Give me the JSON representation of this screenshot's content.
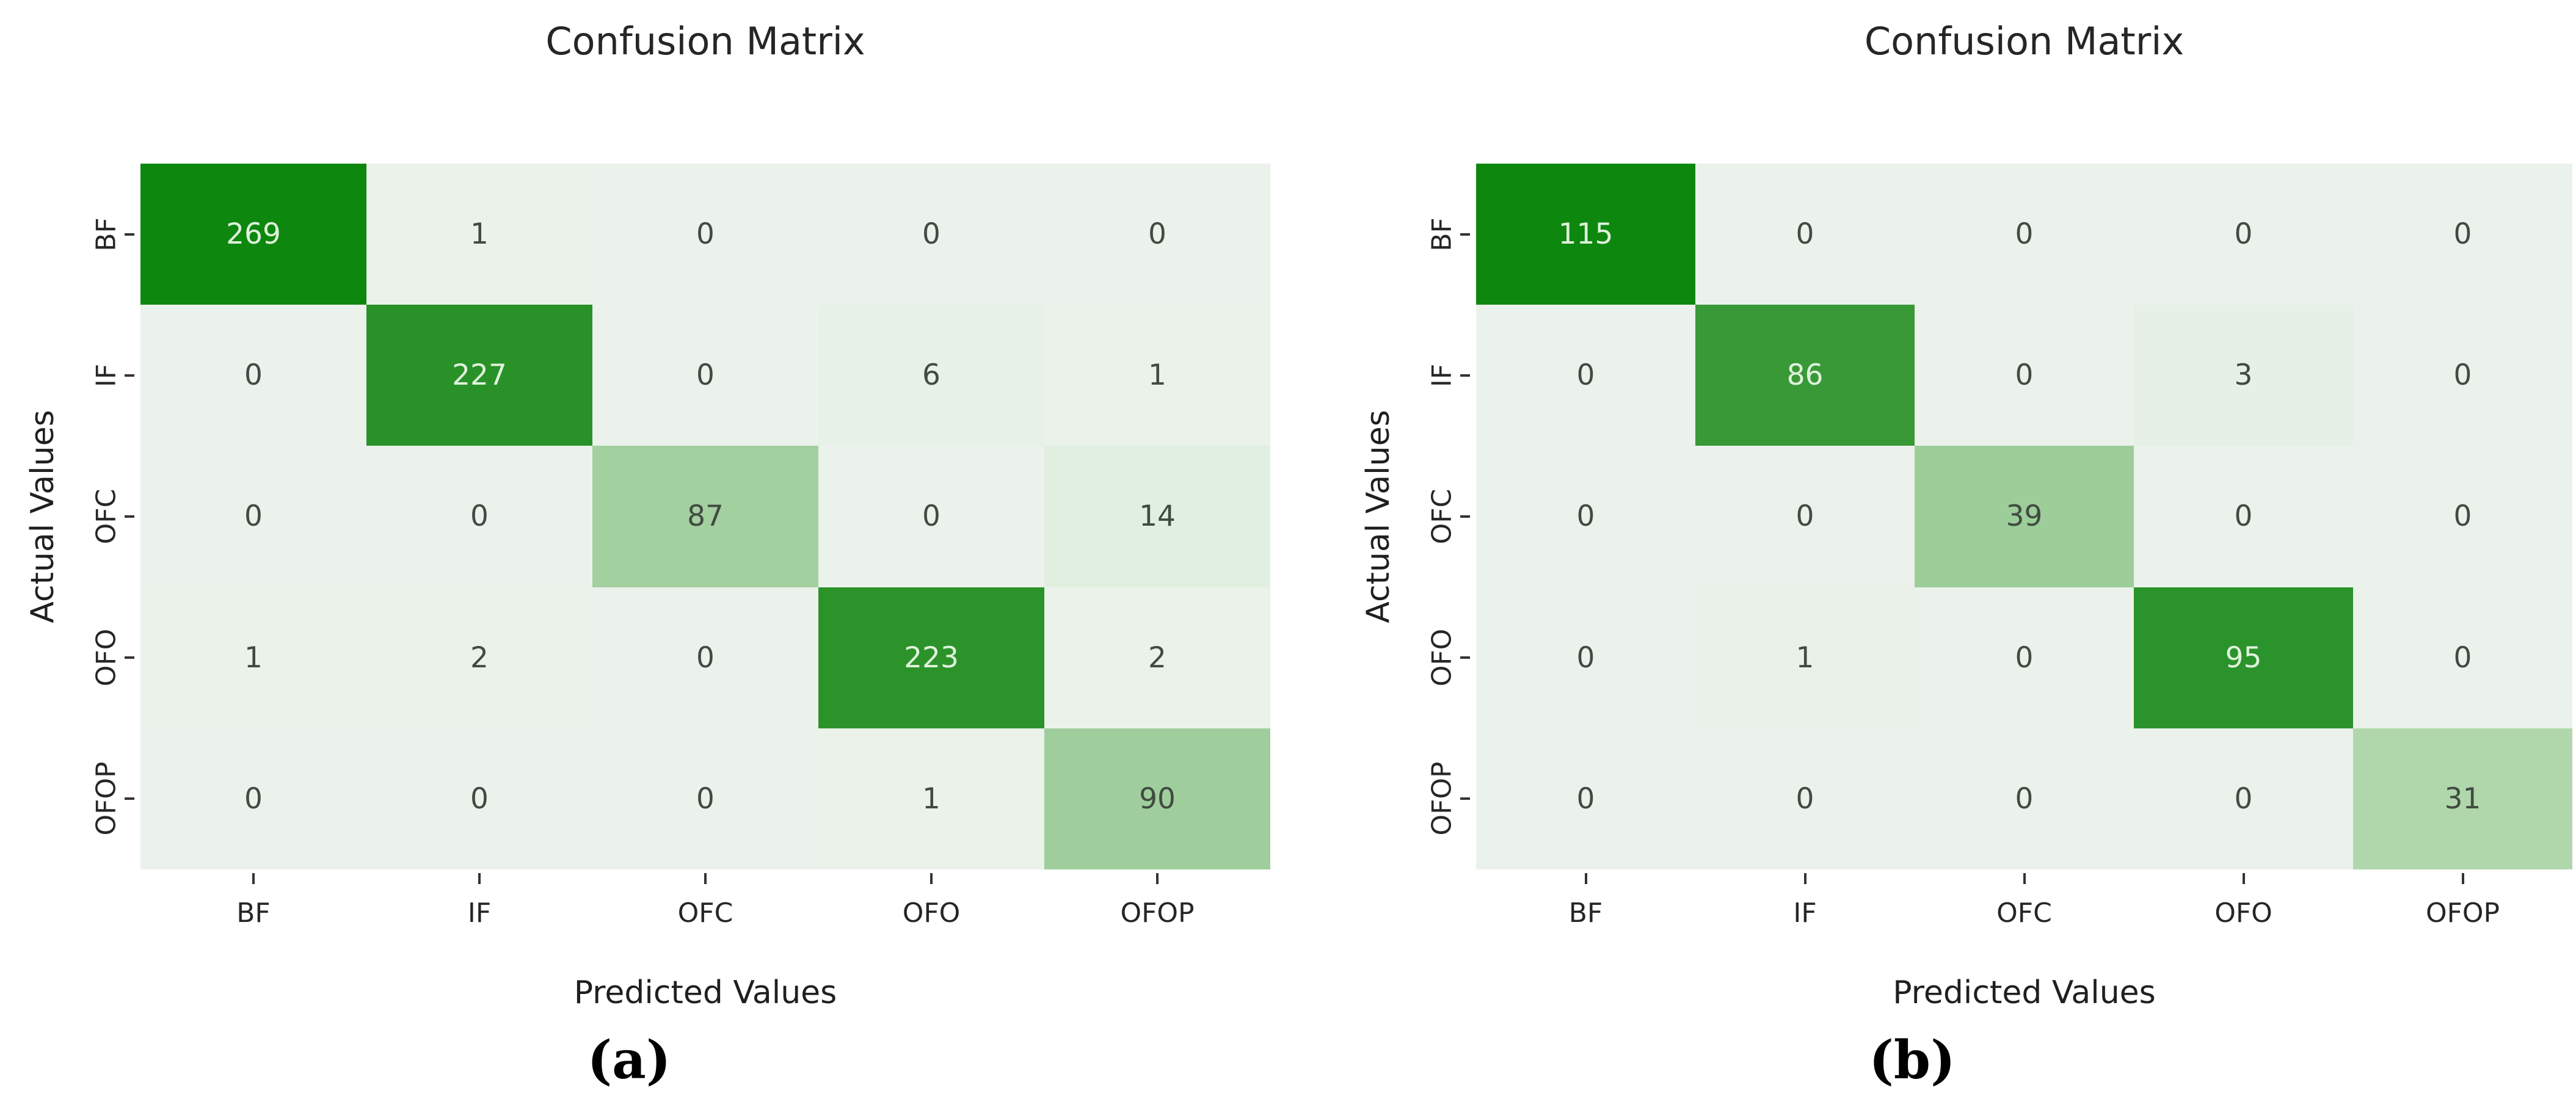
{
  "figure": {
    "background": "#ffffff"
  },
  "chart_data": [
    {
      "type": "heatmap",
      "title": "Confusion Matrix",
      "xlabel": "Predicted Values",
      "ylabel": "Actual Values",
      "caption": "(a)",
      "x_tick_labels": [
        "BF",
        "IF",
        "OFC",
        "OFO",
        "OFOP"
      ],
      "y_tick_labels": [
        "BF",
        "IF",
        "OFC",
        "OFO",
        "OFOP"
      ],
      "matrix": [
        [
          269,
          1,
          0,
          0,
          0
        ],
        [
          0,
          227,
          0,
          6,
          1
        ],
        [
          0,
          0,
          87,
          0,
          14
        ],
        [
          1,
          2,
          0,
          223,
          2
        ],
        [
          0,
          0,
          0,
          1,
          90
        ]
      ],
      "vmin": 0,
      "vmax": 269,
      "colormap": "Greens",
      "legend": "none",
      "grid": "off"
    },
    {
      "type": "heatmap",
      "title": "Confusion Matrix",
      "xlabel": "Predicted Values",
      "ylabel": "Actual Values",
      "caption": "(b)",
      "x_tick_labels": [
        "BF",
        "IF",
        "OFC",
        "OFO",
        "OFOP"
      ],
      "y_tick_labels": [
        "BF",
        "IF",
        "OFC",
        "OFO",
        "OFOP"
      ],
      "matrix": [
        [
          115,
          0,
          0,
          0,
          0
        ],
        [
          0,
          86,
          0,
          3,
          0
        ],
        [
          0,
          0,
          39,
          0,
          0
        ],
        [
          0,
          1,
          0,
          95,
          0
        ],
        [
          0,
          0,
          0,
          0,
          31
        ]
      ],
      "vmin": 0,
      "vmax": 115,
      "colormap": "Greens",
      "legend": "none",
      "grid": "off"
    }
  ],
  "colors": {
    "background": "#ffffff",
    "cell_text_dark": "#414b41",
    "cell_text_light": "#dff2dc",
    "tick_label": "#262626",
    "tick_mark": "#333333",
    "title": "#262626",
    "caption": "#000000",
    "light_text_threshold": 0.5,
    "colormap_stops": [
      [
        0.0,
        [
          235,
          242,
          235
        ]
      ],
      [
        0.06,
        [
          224,
          238,
          223
        ]
      ],
      [
        0.18,
        [
          199,
          226,
          195
        ]
      ],
      [
        0.33,
        [
          160,
          207,
          157
        ]
      ],
      [
        0.5,
        [
          108,
          181,
          105
        ]
      ],
      [
        0.65,
        [
          70,
          160,
          68
        ]
      ],
      [
        0.78,
        [
          51,
          151,
          50
        ]
      ],
      [
        0.87,
        [
          36,
          144,
          36
        ]
      ],
      [
        1.0,
        [
          13,
          135,
          14
        ]
      ]
    ]
  }
}
